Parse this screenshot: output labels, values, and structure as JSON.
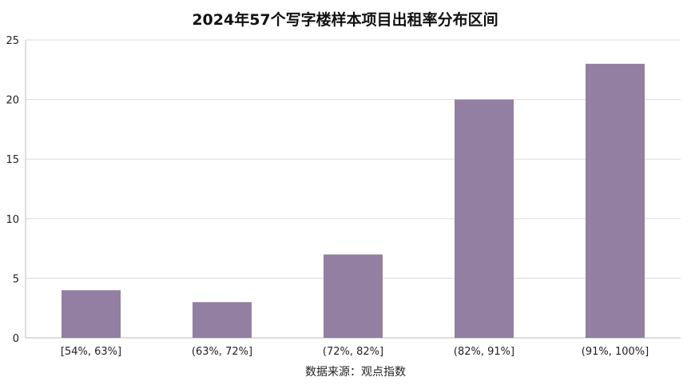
{
  "chart_data": {
    "type": "bar",
    "title": "2024年57个写字楼样本项目出租率分布区间",
    "categories": [
      "[54%, 63%]",
      "(63%, 72%]",
      "(72%, 82%]",
      "(82%, 91%]",
      "(91%, 100%]"
    ],
    "values": [
      4,
      3,
      7,
      20,
      23
    ],
    "xlabel": "",
    "ylabel": "",
    "ylim": [
      0,
      25
    ],
    "yticks": [
      0,
      5,
      10,
      15,
      20,
      25
    ],
    "grid": true,
    "colors": {
      "bar": "#927fa2"
    }
  },
  "source": "数据来源：观点指数"
}
